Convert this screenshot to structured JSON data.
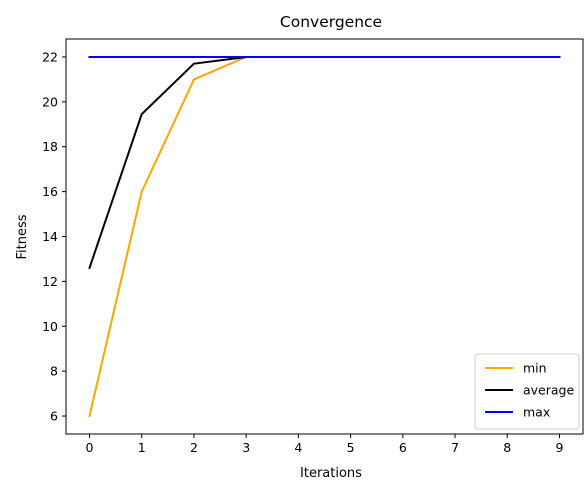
{
  "chart_data": {
    "type": "line",
    "title": "Convergence",
    "xlabel": "Iterations",
    "ylabel": "Fitness",
    "x": [
      0,
      1,
      2,
      3,
      4,
      5,
      6,
      7,
      8,
      9
    ],
    "xticks": [
      0,
      1,
      2,
      3,
      4,
      5,
      6,
      7,
      8,
      9
    ],
    "yticks": [
      6,
      8,
      10,
      12,
      14,
      16,
      18,
      20,
      22
    ],
    "xlim": [
      -0.45,
      9.45
    ],
    "ylim": [
      5.2,
      22.8
    ],
    "grid": false,
    "legend_position": "lower right",
    "series": [
      {
        "name": "min",
        "color": "#FFA500",
        "values": [
          6.0,
          16.0,
          21.0,
          22.0,
          22.0,
          22.0,
          22.0,
          22.0,
          22.0,
          22.0
        ]
      },
      {
        "name": "average",
        "color": "#000000",
        "values": [
          12.6,
          19.45,
          21.7,
          22.0,
          22.0,
          22.0,
          22.0,
          22.0,
          22.0,
          22.0
        ]
      },
      {
        "name": "max",
        "color": "#0000FF",
        "values": [
          22.0,
          22.0,
          22.0,
          22.0,
          22.0,
          22.0,
          22.0,
          22.0,
          22.0,
          22.0
        ]
      }
    ]
  }
}
